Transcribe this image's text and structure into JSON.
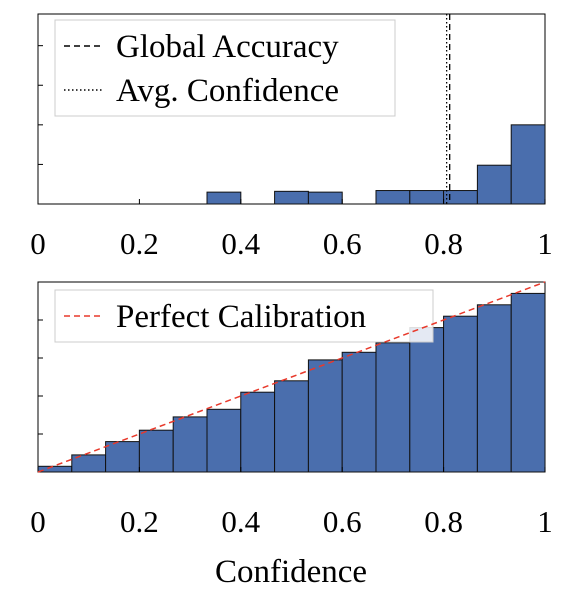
{
  "chart_data": [
    {
      "type": "bar",
      "panel": "top",
      "bin_width": 0.0667,
      "x": [
        0.0333,
        0.1,
        0.1667,
        0.2333,
        0.3,
        0.3667,
        0.4333,
        0.5,
        0.5667,
        0.6333,
        0.7,
        0.7667,
        0.8333,
        0.9,
        0.9667
      ],
      "values": [
        0,
        0,
        0,
        0,
        0,
        0.15,
        0,
        0.16,
        0.15,
        0,
        0.17,
        0.17,
        0.17,
        0.49,
        1.0
      ],
      "xlim": [
        0,
        1
      ],
      "ylim": [
        0,
        2.4
      ],
      "xticks": [
        "0",
        "0.2",
        "0.4",
        "0.6",
        "0.8",
        "1"
      ],
      "xtick_values": [
        0,
        0.2,
        0.4,
        0.6,
        0.8,
        1.0
      ],
      "ytick_values": [
        0.5,
        1.0,
        1.5,
        2.0
      ],
      "reference_lines": [
        {
          "name": "Global Accuracy",
          "x": 0.812,
          "style": "dashed"
        },
        {
          "name": "Avg. Confidence",
          "x": 0.806,
          "style": "dotted"
        }
      ],
      "legend": [
        "Global Accuracy",
        "Avg. Confidence"
      ],
      "legend_position": "top-left",
      "bar_color": "#4a6ead",
      "xlabel": ""
    },
    {
      "type": "bar",
      "panel": "bottom",
      "bin_width": 0.0667,
      "x": [
        0.0333,
        0.1,
        0.1667,
        0.2333,
        0.3,
        0.3667,
        0.4333,
        0.5,
        0.5667,
        0.6333,
        0.7,
        0.7667,
        0.8333,
        0.9,
        0.9667
      ],
      "values": [
        0.03,
        0.09,
        0.16,
        0.22,
        0.29,
        0.33,
        0.42,
        0.48,
        0.59,
        0.63,
        0.68,
        0.76,
        0.82,
        0.88,
        0.94
      ],
      "xlim": [
        0,
        1
      ],
      "ylim": [
        0,
        1.0
      ],
      "xticks": [
        "0",
        "0.2",
        "0.4",
        "0.6",
        "0.8",
        "1"
      ],
      "xtick_values": [
        0,
        0.2,
        0.4,
        0.6,
        0.8,
        1.0
      ],
      "ytick_values": [
        0.2,
        0.4,
        0.6,
        0.8
      ],
      "reference_lines": [
        {
          "name": "Perfect Calibration",
          "from": [
            0,
            0
          ],
          "to": [
            1,
            1
          ],
          "style": "dashed",
          "color": "#e8392b"
        }
      ],
      "legend": [
        "Perfect Calibration"
      ],
      "legend_position": "top-left",
      "bar_color": "#4a6ead",
      "xlabel": "Confidence"
    }
  ]
}
